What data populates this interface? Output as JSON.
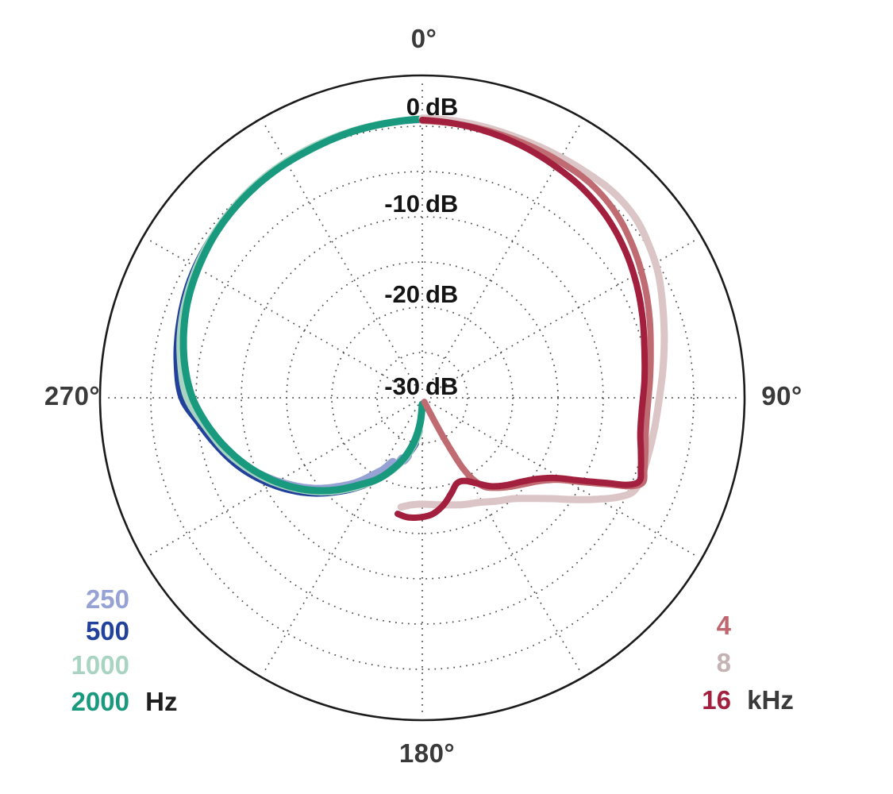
{
  "chart_data": {
    "type": "line",
    "polar": true,
    "title": "",
    "description": "Microphone polar pattern: normalized level (dB) versus angle for seven frequencies",
    "angle_ticks": [
      {
        "id": "top",
        "label": "0°"
      },
      {
        "id": "right",
        "label": "90°"
      },
      {
        "id": "bottom",
        "label": "180°"
      },
      {
        "id": "left",
        "label": "270°"
      }
    ],
    "radial_ticks": [
      {
        "value": "0",
        "unit": "dB",
        "db": 0
      },
      {
        "value": "-10",
        "unit": "dB",
        "db": -10
      },
      {
        "value": "-20",
        "unit": "dB",
        "db": -20
      },
      {
        "value": "-30",
        "unit": "dB",
        "db": -30
      }
    ],
    "scale": {
      "outer_ring_db": 0,
      "center_db": -30,
      "ring_step_db": 5,
      "spoke_step_deg": 30
    },
    "grid": {
      "rings_dotted": true,
      "spokes_dotted": true,
      "dot_color": "#4a4a4a",
      "outer_circle_color": "#1b1b1b"
    },
    "series": [
      {
        "name": "250 Hz",
        "color": "#97a2d4",
        "width": 8,
        "points": [
          [
            193,
            -23.4
          ],
          [
            196,
            -22.7
          ],
          [
            199,
            -23.0
          ],
          [
            202,
            -21.7
          ],
          [
            205,
            -22.3
          ],
          [
            209,
            -21.0
          ],
          [
            213,
            -19.9
          ],
          [
            218,
            -18.2
          ],
          [
            224,
            -16.4
          ],
          [
            230,
            -14.5
          ],
          [
            237,
            -12.5
          ],
          [
            244,
            -10.5
          ],
          [
            251,
            -8.6
          ],
          [
            258,
            -6.8
          ],
          [
            264,
            -5.3
          ],
          [
            270,
            -3.6
          ],
          [
            279,
            -2.7
          ],
          [
            289,
            -1.9
          ],
          [
            300,
            -1.2
          ],
          [
            312,
            -0.6
          ],
          [
            325,
            -0.1
          ],
          [
            340,
            0.3
          ],
          [
            360,
            0.7
          ]
        ]
      },
      {
        "name": "500 Hz",
        "color": "#21419b",
        "width": 8,
        "points": [
          [
            188,
            -24.9
          ],
          [
            192,
            -24.0
          ],
          [
            197,
            -22.9
          ],
          [
            203,
            -21.4
          ],
          [
            209,
            -19.7
          ],
          [
            215,
            -18.0
          ],
          [
            222,
            -16.0
          ],
          [
            229,
            -13.9
          ],
          [
            236,
            -11.9
          ],
          [
            243,
            -10.0
          ],
          [
            250,
            -8.2
          ],
          [
            258,
            -6.4
          ],
          [
            264,
            -5.0
          ],
          [
            270,
            -3.4
          ],
          [
            278,
            -2.6
          ],
          [
            287,
            -1.9
          ],
          [
            297,
            -1.2
          ],
          [
            308,
            -0.7
          ],
          [
            320,
            -0.3
          ],
          [
            333,
            0.1
          ],
          [
            346,
            0.4
          ],
          [
            360,
            0.8
          ]
        ]
      },
      {
        "name": "1000 Hz",
        "color": "#a9d4c1",
        "width": 8,
        "points": [
          [
            184,
            -26.3
          ],
          [
            188,
            -25.2
          ],
          [
            193,
            -23.8
          ],
          [
            199,
            -22.2
          ],
          [
            206,
            -20.4
          ],
          [
            213,
            -18.6
          ],
          [
            220,
            -16.7
          ],
          [
            227,
            -14.7
          ],
          [
            234,
            -12.8
          ],
          [
            241,
            -10.9
          ],
          [
            248,
            -9.1
          ],
          [
            255,
            -7.4
          ],
          [
            262,
            -5.9
          ],
          [
            270,
            -3.95
          ],
          [
            278,
            -3.0
          ],
          [
            286,
            -2.2
          ],
          [
            295,
            -1.5
          ],
          [
            304,
            -0.9
          ],
          [
            314,
            -0.4
          ],
          [
            324,
            0.0
          ],
          [
            336,
            0.3
          ],
          [
            348,
            0.55
          ],
          [
            360,
            0.8
          ]
        ]
      },
      {
        "name": "2000 Hz",
        "color": "#199a7e",
        "width": 9,
        "points": [
          [
            181,
            -29.3
          ],
          [
            184,
            -27.6
          ],
          [
            189,
            -25.6
          ],
          [
            195,
            -23.6
          ],
          [
            202,
            -21.6
          ],
          [
            209,
            -19.7
          ],
          [
            216,
            -18.1
          ],
          [
            223,
            -16.1
          ],
          [
            230,
            -14.1
          ],
          [
            237,
            -12.2
          ],
          [
            244,
            -10.4
          ],
          [
            251,
            -8.7
          ],
          [
            258,
            -7.1
          ],
          [
            264,
            -5.8
          ],
          [
            270,
            -4.6
          ],
          [
            277,
            -3.6
          ],
          [
            284,
            -2.8
          ],
          [
            292,
            -2.0
          ],
          [
            300,
            -1.4
          ],
          [
            309,
            -0.8
          ],
          [
            318,
            -0.4
          ],
          [
            327,
            -0.1
          ],
          [
            336,
            0.1
          ],
          [
            345,
            0.4
          ],
          [
            353,
            0.6
          ],
          [
            360,
            0.8
          ]
        ]
      },
      {
        "name": "8 kHz",
        "color": "#dcc5c7",
        "width": 9,
        "points": [
          [
            0,
            0.9
          ],
          [
            10,
            0.75
          ],
          [
            20,
            0.6
          ],
          [
            28,
            0.65
          ],
          [
            36,
            0.8
          ],
          [
            43,
            1.0
          ],
          [
            50,
            0.8
          ],
          [
            56,
            0.2
          ],
          [
            62,
            -0.5
          ],
          [
            68,
            -1.4
          ],
          [
            74,
            -2.2
          ],
          [
            82,
            -3.1
          ],
          [
            90,
            -3.8
          ],
          [
            97,
            -4.1
          ],
          [
            104,
            -4.25
          ],
          [
            110,
            -4.25
          ],
          [
            114,
            -4.5
          ],
          [
            117,
            -5.8
          ],
          [
            120,
            -7.6
          ],
          [
            124,
            -9.9
          ],
          [
            128,
            -11.9
          ],
          [
            133,
            -13.7
          ],
          [
            138,
            -15.0
          ],
          [
            144,
            -15.9
          ],
          [
            151,
            -16.8
          ],
          [
            158,
            -17.3
          ],
          [
            166,
            -17.8
          ],
          [
            173,
            -18.1
          ],
          [
            180,
            -18.25
          ],
          [
            186,
            -18.1
          ],
          [
            191,
            -17.7
          ]
        ]
      },
      {
        "name": "4 kHz",
        "color": "#c06b72",
        "width": 8,
        "points": [
          [
            0,
            0.6
          ],
          [
            10,
            0.45
          ],
          [
            20,
            0.3
          ],
          [
            30,
            0.2
          ],
          [
            38,
            0.1
          ],
          [
            46,
            -0.4
          ],
          [
            54,
            -1.3
          ],
          [
            62,
            -2.3
          ],
          [
            70,
            -3.3
          ],
          [
            78,
            -4.2
          ],
          [
            86,
            -4.8
          ],
          [
            93,
            -5.1
          ],
          [
            99,
            -5.0
          ],
          [
            104,
            -4.6
          ],
          [
            108,
            -4.2
          ],
          [
            111,
            -3.9
          ],
          [
            113,
            -5.0
          ],
          [
            115,
            -7.4
          ],
          [
            118,
            -10.2
          ],
          [
            121,
            -12.4
          ],
          [
            125,
            -14.0
          ],
          [
            130,
            -15.2
          ],
          [
            136,
            -16.3
          ],
          [
            141,
            -17.2
          ],
          [
            145,
            -18.0
          ],
          [
            148,
            -19.3
          ],
          [
            150,
            -21.0
          ],
          [
            151,
            -23.0
          ],
          [
            152,
            -25.5
          ],
          [
            152.7,
            -28.2
          ],
          [
            153,
            -29.5
          ]
        ]
      },
      {
        "name": "16 kHz",
        "color": "#a31f3e",
        "width": 8,
        "points": [
          [
            0,
            0.7
          ],
          [
            10,
            0.4
          ],
          [
            20,
            0.0
          ],
          [
            30,
            -0.5
          ],
          [
            38,
            -0.9
          ],
          [
            46,
            -1.5
          ],
          [
            54,
            -2.3
          ],
          [
            62,
            -3.2
          ],
          [
            70,
            -4.1
          ],
          [
            78,
            -4.9
          ],
          [
            86,
            -5.4
          ],
          [
            93,
            -5.7
          ],
          [
            99,
            -5.6
          ],
          [
            104,
            -5.1
          ],
          [
            108,
            -4.6
          ],
          [
            111,
            -4.3
          ],
          [
            113,
            -5.4
          ],
          [
            115,
            -7.8
          ],
          [
            118,
            -10.6
          ],
          [
            121,
            -12.8
          ],
          [
            125,
            -14.4
          ],
          [
            130,
            -15.6
          ],
          [
            136,
            -16.6
          ],
          [
            142,
            -17.6
          ],
          [
            148,
            -18.9
          ],
          [
            153,
            -19.7
          ],
          [
            158,
            -19.8
          ],
          [
            163,
            -19.0
          ],
          [
            169,
            -17.9
          ],
          [
            175,
            -17.1
          ],
          [
            181,
            -16.8
          ],
          [
            187,
            -16.7
          ],
          [
            192,
            -16.9
          ]
        ]
      }
    ]
  },
  "legend": {
    "left": {
      "unit": "Hz",
      "items": [
        {
          "label": "250",
          "color": "#97a2d4"
        },
        {
          "label": "500",
          "color": "#21419b"
        },
        {
          "label": "1000",
          "color": "#a9d4c1"
        },
        {
          "label": "2000",
          "color": "#199a7e"
        }
      ]
    },
    "right": {
      "unit": "kHz",
      "items": [
        {
          "label": "4",
          "color": "#bf666e"
        },
        {
          "label": "8",
          "color": "#c4b2b4"
        },
        {
          "label": "16",
          "color": "#a31f3e"
        }
      ]
    }
  }
}
